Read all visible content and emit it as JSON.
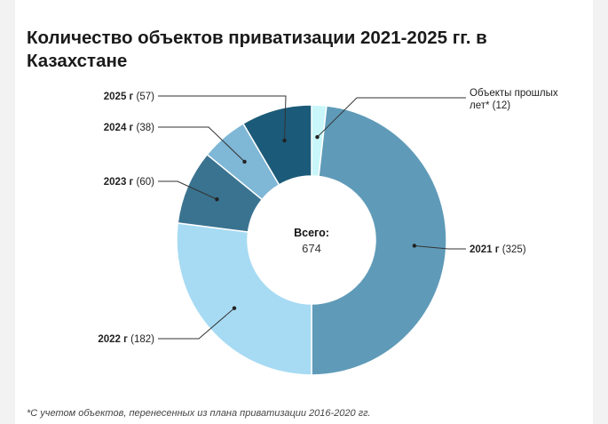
{
  "title": "Количество объектов приватизации 2021-2025 гг. в Казахстане",
  "footnote": "*С учетом объектов, перенесенных из плана приватизации 2016-2020 гг.",
  "chart_data": {
    "type": "pie",
    "donut": true,
    "center_label": "Всего:",
    "center_value": "674",
    "slices": [
      {
        "name": "Объекты прошлых лет*",
        "value": 12,
        "color": "#c8f6f9",
        "label_lines": [
          {
            "bold": "",
            "normal": "Объекты прошлых"
          },
          {
            "bold": "",
            "normal": "лет* (12)"
          }
        ]
      },
      {
        "name": "2021 г",
        "value": 325,
        "color": "#5f9bb8",
        "label_lines": [
          {
            "bold": "2021 г",
            "normal": " (325)"
          }
        ]
      },
      {
        "name": "2022 г",
        "value": 182,
        "color": "#a7dbf3",
        "label_lines": [
          {
            "bold": "2022 г",
            "normal": " (182)"
          }
        ]
      },
      {
        "name": "2023 г",
        "value": 60,
        "color": "#3a7390",
        "label_lines": [
          {
            "bold": "2023 г",
            "normal": " (60)"
          }
        ]
      },
      {
        "name": "2024 г",
        "value": 38,
        "color": "#7fb7d6",
        "label_lines": [
          {
            "bold": "2024 г",
            "normal": " (38)"
          }
        ]
      },
      {
        "name": "2025 г",
        "value": 57,
        "color": "#1b5a78",
        "label_lines": [
          {
            "bold": "2025 г",
            "normal": " (57)"
          }
        ]
      }
    ]
  }
}
